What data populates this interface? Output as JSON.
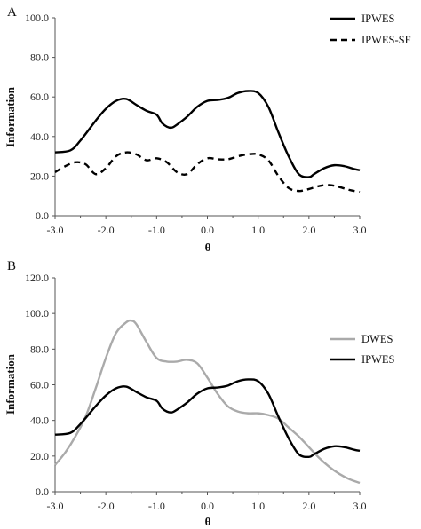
{
  "chart_data": [
    {
      "type": "line",
      "panel_label": "A",
      "xlabel": "θ",
      "ylabel": "Information",
      "xlim": [
        -3,
        3
      ],
      "ylim": [
        0,
        100
      ],
      "x_ticks": [
        "-3.0",
        "-2.0",
        "-1.0",
        "0.0",
        "1.0",
        "2.0",
        "3.0"
      ],
      "y_ticks": [
        "0.0",
        "20.0",
        "40.0",
        "60.0",
        "80.0",
        "100.0"
      ],
      "grid": false,
      "legend_position": "top-right",
      "series": [
        {
          "name": "IPWES",
          "color": "#000000",
          "dash": "solid",
          "x": [
            -3.0,
            -2.7,
            -2.5,
            -2.2,
            -2.0,
            -1.8,
            -1.6,
            -1.4,
            -1.2,
            -1.0,
            -0.9,
            -0.8,
            -0.7,
            -0.6,
            -0.4,
            -0.2,
            0.0,
            0.2,
            0.4,
            0.6,
            0.8,
            1.0,
            1.2,
            1.4,
            1.6,
            1.8,
            2.0,
            2.1,
            2.3,
            2.5,
            2.7,
            2.9,
            3.0
          ],
          "values": [
            32,
            33,
            38,
            48,
            54,
            58,
            59,
            56,
            53,
            51,
            47,
            45,
            44.5,
            46,
            50,
            55,
            58,
            58.5,
            59.5,
            62,
            63,
            62,
            55,
            42,
            30,
            21,
            19.5,
            21,
            24,
            25.5,
            25,
            23.5,
            23
          ]
        },
        {
          "name": "IPWES-SF",
          "color": "#000000",
          "dash": "dashed",
          "x": [
            -3.0,
            -2.8,
            -2.6,
            -2.4,
            -2.2,
            -2.0,
            -1.8,
            -1.6,
            -1.4,
            -1.2,
            -1.0,
            -0.8,
            -0.6,
            -0.4,
            -0.2,
            0.0,
            0.2,
            0.4,
            0.6,
            0.8,
            1.0,
            1.2,
            1.4,
            1.6,
            1.8,
            2.0,
            2.2,
            2.4,
            2.6,
            2.8,
            3.0
          ],
          "values": [
            22,
            25,
            27,
            26,
            21,
            24,
            30,
            32,
            31,
            28,
            29,
            27,
            22,
            21,
            26,
            29,
            28.5,
            28.5,
            30,
            31,
            31,
            28,
            20,
            14,
            12.5,
            13.5,
            15,
            15.5,
            14.5,
            13,
            12
          ]
        }
      ]
    },
    {
      "type": "line",
      "panel_label": "B",
      "xlabel": "θ",
      "ylabel": "Information",
      "xlim": [
        -3,
        3
      ],
      "ylim": [
        0,
        120
      ],
      "x_ticks": [
        "-3.0",
        "-2.0",
        "-1.0",
        "0.0",
        "1.0",
        "2.0",
        "3.0"
      ],
      "y_ticks": [
        "0.0",
        "20.0",
        "40.0",
        "60.0",
        "80.0",
        "100.0",
        "120.0"
      ],
      "grid": false,
      "legend_position": "right",
      "series": [
        {
          "name": "DWES",
          "color": "#aaaaaa",
          "dash": "solid",
          "x": [
            -3.0,
            -2.8,
            -2.6,
            -2.4,
            -2.2,
            -2.0,
            -1.8,
            -1.6,
            -1.5,
            -1.4,
            -1.2,
            -1.0,
            -0.8,
            -0.6,
            -0.4,
            -0.2,
            0.0,
            0.2,
            0.4,
            0.6,
            0.8,
            1.0,
            1.2,
            1.4,
            1.6,
            1.8,
            2.0,
            2.2,
            2.4,
            2.6,
            2.8,
            3.0
          ],
          "values": [
            15,
            22,
            31,
            42,
            58,
            75,
            89,
            95,
            96,
            94,
            84,
            75,
            73,
            73,
            74,
            72,
            64,
            55,
            48,
            45,
            44,
            44,
            43,
            41,
            36,
            31,
            25,
            19,
            14,
            10,
            7,
            5
          ]
        },
        {
          "name": "IPWES",
          "color": "#000000",
          "dash": "solid",
          "x": [
            -3.0,
            -2.7,
            -2.5,
            -2.2,
            -2.0,
            -1.8,
            -1.6,
            -1.4,
            -1.2,
            -1.0,
            -0.9,
            -0.8,
            -0.7,
            -0.6,
            -0.4,
            -0.2,
            0.0,
            0.2,
            0.4,
            0.6,
            0.8,
            1.0,
            1.2,
            1.4,
            1.6,
            1.8,
            2.0,
            2.1,
            2.3,
            2.5,
            2.7,
            2.9,
            3.0
          ],
          "values": [
            32,
            33,
            38,
            48,
            54,
            58,
            59,
            56,
            53,
            51,
            47,
            45,
            44.5,
            46,
            50,
            55,
            58,
            58.5,
            59.5,
            62,
            63,
            62,
            55,
            42,
            30,
            21,
            19.5,
            21,
            24,
            25.5,
            25,
            23.5,
            23
          ]
        }
      ]
    }
  ]
}
